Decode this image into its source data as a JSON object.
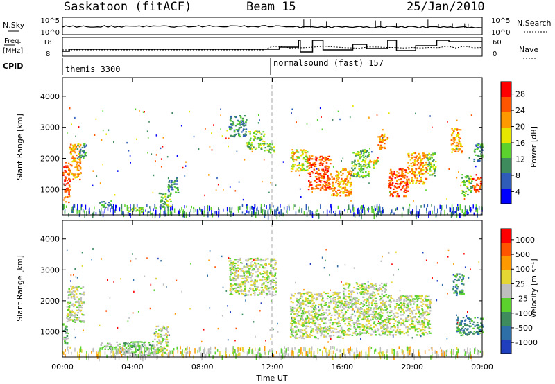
{
  "header": {
    "title": "Saskatoon (fitACF)",
    "beam": "Beam 15",
    "date": "25/Jan/2010"
  },
  "left_labels": {
    "nsky": "N.Sky",
    "freq": "Freq.",
    "mhz": "[MHz]",
    "cpid": "CPID"
  },
  "right_labels": {
    "nsearch": "N.Search",
    "nave": "Nave"
  },
  "noise_axis": {
    "left_top": "10^5",
    "left_bottom": "10^0",
    "right_top": "10^5",
    "right_bottom": "10^0"
  },
  "freq_axis": {
    "left_ticks": [
      "18",
      "8"
    ],
    "right_ticks": [
      "60",
      "0"
    ]
  },
  "cpid_labels": [
    "themis 3300",
    "normalsound (fast) 157"
  ],
  "colors": {
    "power": [
      "#0000ff",
      "#2e5cb8",
      "#3e8c5e",
      "#5bd12e",
      "#e6e600",
      "#ff9900",
      "#ff5500",
      "#ff0000"
    ],
    "velocity": [
      "#1f3fbf",
      "#2f6fa8",
      "#3e8c5e",
      "#5bd12e",
      "#bfbfbf",
      "#e6d633",
      "#ff9900",
      "#ff5500",
      "#ff0000"
    ],
    "nsky_line": "#000000",
    "nsearch_line": "#000000"
  },
  "power_colorbar": {
    "label": "Power [dB]",
    "ticks": [
      "28",
      "24",
      "20",
      "16",
      "12",
      "8",
      "4"
    ]
  },
  "velocity_colorbar": {
    "label": "Velocity [m s⁻¹]",
    "ticks": [
      "1000",
      "500",
      "100",
      "25",
      "-25",
      "-100",
      "-500",
      "-1000"
    ]
  },
  "xaxis": {
    "label": "Time UT",
    "ticks": [
      "00:00",
      "04:00",
      "08:00",
      "12:00",
      "16:00",
      "20:00",
      "00:00"
    ]
  },
  "chart_data": [
    {
      "type": "heatmap",
      "name": "power-panel",
      "ylabel": "Slant Range [km]",
      "xlabel": "Time UT",
      "xlim": [
        0,
        24
      ],
      "ylim": [
        180,
        4600
      ],
      "yticks": [
        1000,
        2000,
        3000,
        4000
      ],
      "regions": [
        {
          "t0": 0.0,
          "t1": 0.4,
          "r0": 600,
          "r1": 1900,
          "lvl": 6
        },
        {
          "t0": 0.4,
          "t1": 1.0,
          "r0": 1300,
          "r1": 2500,
          "lvl": 5
        },
        {
          "t0": 0.8,
          "t1": 1.3,
          "r0": 2000,
          "r1": 2500,
          "lvl": 2
        },
        {
          "t0": 2.1,
          "t1": 2.8,
          "r0": 450,
          "r1": 650,
          "lvl": 2
        },
        {
          "t0": 3.6,
          "t1": 4.6,
          "r0": 250,
          "r1": 450,
          "lvl": 3
        },
        {
          "t0": 5.5,
          "t1": 6.2,
          "r0": 400,
          "r1": 900,
          "lvl": 3
        },
        {
          "t0": 6.0,
          "t1": 6.6,
          "r0": 900,
          "r1": 1400,
          "lvl": 2
        },
        {
          "t0": 9.5,
          "t1": 10.5,
          "r0": 2700,
          "r1": 3400,
          "lvl": 2
        },
        {
          "t0": 10.5,
          "t1": 11.5,
          "r0": 2300,
          "r1": 2900,
          "lvl": 3
        },
        {
          "t0": 11.5,
          "t1": 12.2,
          "r0": 2200,
          "r1": 2500,
          "lvl": 3
        },
        {
          "t0": 13.0,
          "t1": 14.0,
          "r0": 1600,
          "r1": 2300,
          "lvl": 4
        },
        {
          "t0": 14.0,
          "t1": 15.3,
          "r0": 1000,
          "r1": 2100,
          "lvl": 6
        },
        {
          "t0": 15.3,
          "t1": 16.5,
          "r0": 800,
          "r1": 1700,
          "lvl": 5
        },
        {
          "t0": 16.5,
          "t1": 17.5,
          "r0": 1400,
          "r1": 2300,
          "lvl": 3
        },
        {
          "t0": 17.5,
          "t1": 18.0,
          "r0": 1700,
          "r1": 2000,
          "lvl": 4
        },
        {
          "t0": 18.0,
          "t1": 18.6,
          "r0": 2300,
          "r1": 2800,
          "lvl": 5
        },
        {
          "t0": 18.6,
          "t1": 19.7,
          "r0": 800,
          "r1": 1700,
          "lvl": 6
        },
        {
          "t0": 19.7,
          "t1": 20.8,
          "r0": 1200,
          "r1": 2200,
          "lvl": 5
        },
        {
          "t0": 20.8,
          "t1": 21.3,
          "r0": 1400,
          "r1": 2200,
          "lvl": 3
        },
        {
          "t0": 22.2,
          "t1": 22.8,
          "r0": 2200,
          "r1": 3000,
          "lvl": 5
        },
        {
          "t0": 22.8,
          "t1": 23.4,
          "r0": 800,
          "r1": 1500,
          "lvl": 3
        },
        {
          "t0": 23.4,
          "t1": 23.9,
          "r0": 900,
          "r1": 1400,
          "lvl": 6
        },
        {
          "t0": 23.5,
          "t1": 24.0,
          "r0": 1900,
          "r1": 2500,
          "lvl": 2
        }
      ]
    },
    {
      "type": "heatmap",
      "name": "velocity-panel",
      "ylabel": "Slant Range [km]",
      "xlabel": "Time UT",
      "xlim": [
        0,
        24
      ],
      "ylim": [
        180,
        4600
      ],
      "yticks": [
        1000,
        2000,
        3000,
        4000
      ],
      "regions": [
        {
          "t0": 0.0,
          "t1": 0.3,
          "r0": 500,
          "r1": 1300,
          "lvl": 3
        },
        {
          "t0": 0.2,
          "t1": 1.2,
          "r0": 1300,
          "r1": 2500,
          "lvl": 4
        },
        {
          "t0": 2.0,
          "t1": 3.0,
          "r0": 450,
          "r1": 650,
          "lvl": 3
        },
        {
          "t0": 3.0,
          "t1": 5.2,
          "r0": 250,
          "r1": 700,
          "lvl": 3
        },
        {
          "t0": 5.2,
          "t1": 6.0,
          "r0": 300,
          "r1": 1200,
          "lvl": 4
        },
        {
          "t0": 9.5,
          "t1": 12.2,
          "r0": 2200,
          "r1": 3400,
          "lvl": 4
        },
        {
          "t0": 13.0,
          "t1": 16.0,
          "r0": 800,
          "r1": 2300,
          "lvl": 4
        },
        {
          "t0": 16.0,
          "t1": 18.5,
          "r0": 900,
          "r1": 2600,
          "lvl": 4
        },
        {
          "t0": 18.5,
          "t1": 21.0,
          "r0": 900,
          "r1": 2200,
          "lvl": 4
        },
        {
          "t0": 22.3,
          "t1": 22.9,
          "r0": 2200,
          "r1": 2900,
          "lvl": 2
        },
        {
          "t0": 22.5,
          "t1": 24.0,
          "r0": 900,
          "r1": 1500,
          "lvl": 2
        }
      ]
    }
  ]
}
